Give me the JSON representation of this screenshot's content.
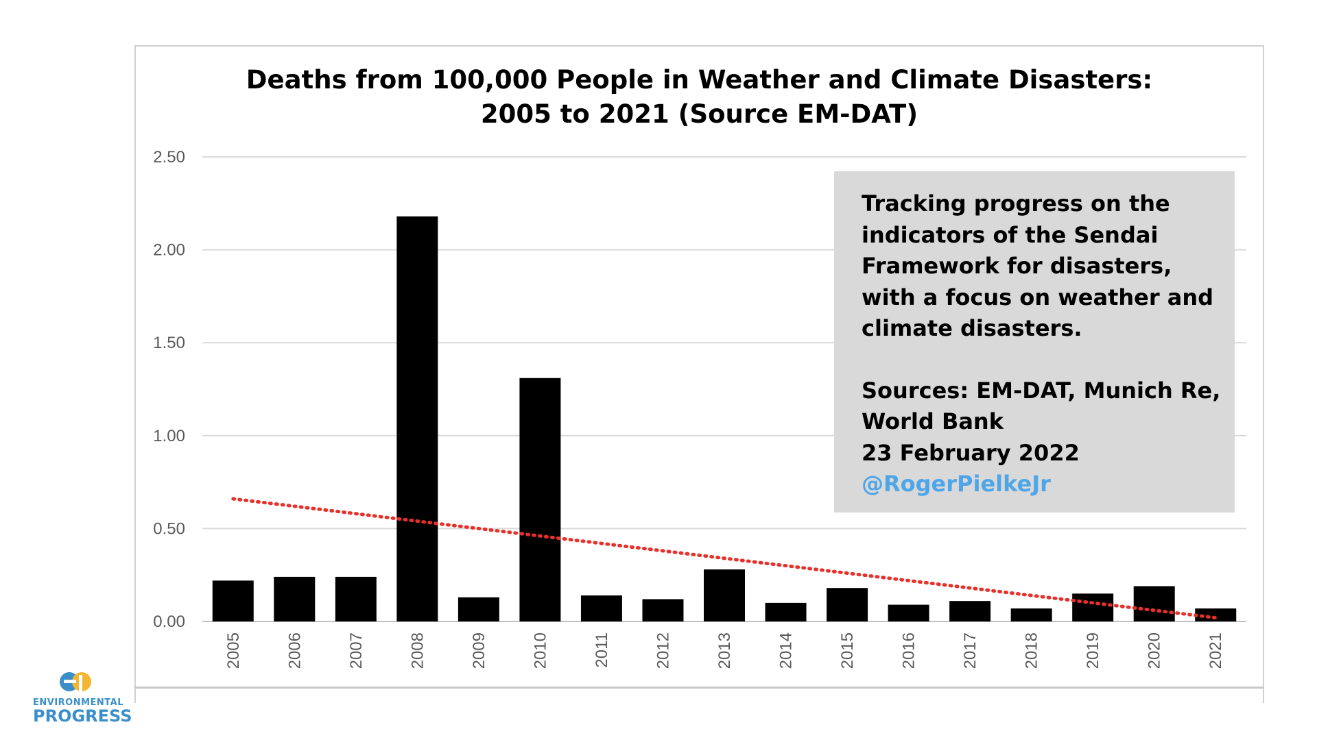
{
  "chart_data": {
    "type": "bar",
    "title_line1": "Deaths from 100,000 People in Weather and Climate Disasters:",
    "title_line2": "2005 to 2021 (Source EM-DAT)",
    "categories": [
      "2005",
      "2006",
      "2007",
      "2008",
      "2009",
      "2010",
      "2011",
      "2012",
      "2013",
      "2014",
      "2015",
      "2016",
      "2017",
      "2018",
      "2019",
      "2020",
      "2021"
    ],
    "values": [
      0.22,
      0.24,
      0.24,
      2.18,
      0.13,
      1.31,
      0.14,
      0.12,
      0.28,
      0.1,
      0.18,
      0.09,
      0.11,
      0.07,
      0.15,
      0.19,
      0.07
    ],
    "ylim": [
      0,
      2.5
    ],
    "yticks": [
      "0.00",
      "0.50",
      "1.00",
      "1.50",
      "2.00",
      "2.50"
    ],
    "xlabel": "",
    "ylabel": "",
    "grid": true,
    "trendline": {
      "type": "linear",
      "style": "dotted",
      "color": "#e8302a",
      "start_value": 0.66,
      "end_value": 0.02
    },
    "colors": {
      "bars": "#000000",
      "grid": "#d9d9d9",
      "axis": "#bfbfbf"
    }
  },
  "note": {
    "description": "Tracking progress on the indicators of the Sendai Framework for disasters, with a focus on weather and climate disasters.",
    "sources": "Sources: EM-DAT, Munich Re, World Bank",
    "date": "23 February 2022",
    "handle": "@RogerPielkeJr",
    "handle_color": "#4ea6e8"
  },
  "logo": {
    "line1": "ENVIRONMENTAL",
    "line2": "PROGRESS",
    "icon": "ep-logo-icon"
  }
}
